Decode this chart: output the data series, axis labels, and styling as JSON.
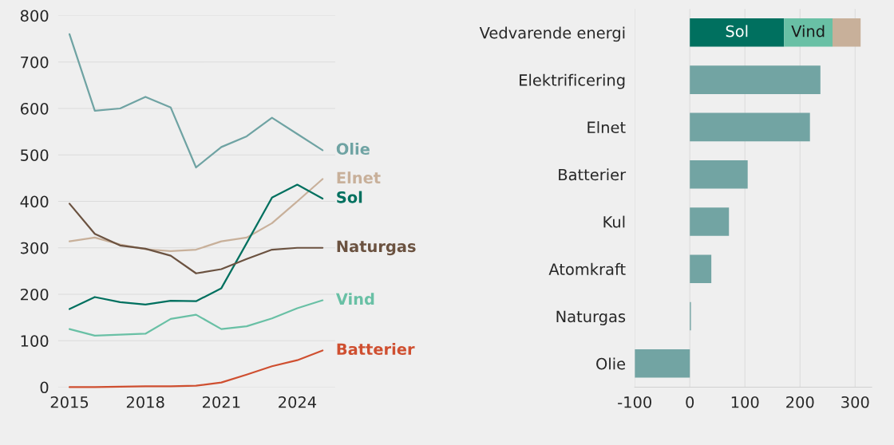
{
  "chart_data": [
    {
      "type": "line",
      "x": [
        2015,
        2016,
        2017,
        2018,
        2019,
        2020,
        2021,
        2022,
        2023,
        2024,
        2025
      ],
      "xlim": [
        2014.55,
        2025.5
      ],
      "xticks": [
        2015,
        2018,
        2021,
        2024
      ],
      "ylim": [
        0,
        800
      ],
      "yticks": [
        0,
        100,
        200,
        300,
        400,
        500,
        600,
        700,
        800
      ],
      "grid": "y",
      "legend": false,
      "series": [
        {
          "name": "Olie",
          "color": "#6fa3a3",
          "values": [
            760,
            595,
            600,
            625,
            602,
            473,
            517,
            540,
            580,
            545,
            510
          ]
        },
        {
          "name": "Elnet",
          "color": "#c8b09a",
          "values": [
            314,
            322,
            307,
            297,
            293,
            296,
            314,
            322,
            353,
            400,
            448
          ]
        },
        {
          "name": "Sol",
          "color": "#00705f",
          "values": [
            168,
            194,
            183,
            178,
            186,
            185,
            213,
            310,
            408,
            436,
            406
          ]
        },
        {
          "name": "Naturgas",
          "color": "#6b5240",
          "values": [
            395,
            330,
            305,
            298,
            283,
            245,
            254,
            276,
            296,
            300,
            300
          ]
        },
        {
          "name": "Vind",
          "color": "#69c0a5",
          "values": [
            125,
            111,
            113,
            115,
            147,
            156,
            125,
            131,
            148,
            170,
            187
          ]
        },
        {
          "name": "Batterier",
          "color": "#cf4f30",
          "values": [
            0,
            0,
            1,
            2,
            2,
            3,
            10,
            27,
            45,
            58,
            79
          ]
        }
      ]
    },
    {
      "type": "bar",
      "orientation": "horizontal",
      "stacked": true,
      "categories": [
        "Vedvarende energi",
        "Elektrificering",
        "Elnet",
        "Batterier",
        "Kul",
        "Atomkraft",
        "Naturgas",
        "Olie"
      ],
      "xlim": [
        -100,
        330
      ],
      "xticks": [
        -100,
        0,
        100,
        200,
        300
      ],
      "grid": "x",
      "legend": false,
      "series": [
        {
          "name": "Sol",
          "colors": [
            "#00705f",
            "#72a4a3",
            "#72a4a3",
            "#72a4a3",
            "#72a4a3",
            "#72a4a3",
            "#72a4a3",
            "#72a4a3"
          ],
          "values": [
            171,
            237,
            218,
            105,
            71,
            39,
            2,
            -100
          ]
        },
        {
          "name": "Vind",
          "color": "#69c0a5",
          "values": [
            88,
            null,
            null,
            null,
            null,
            null,
            null,
            null
          ]
        },
        {
          "color": "#c8b09a",
          "values": [
            51,
            null,
            null,
            null,
            null,
            null,
            null,
            null
          ]
        }
      ]
    }
  ]
}
